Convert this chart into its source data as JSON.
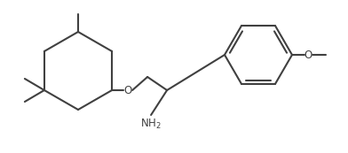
{
  "background": "#ffffff",
  "line_color": "#404040",
  "line_width": 1.5,
  "text_color": "#404040",
  "font_size": 8.5,
  "fig_w": 3.92,
  "fig_h": 1.73
}
